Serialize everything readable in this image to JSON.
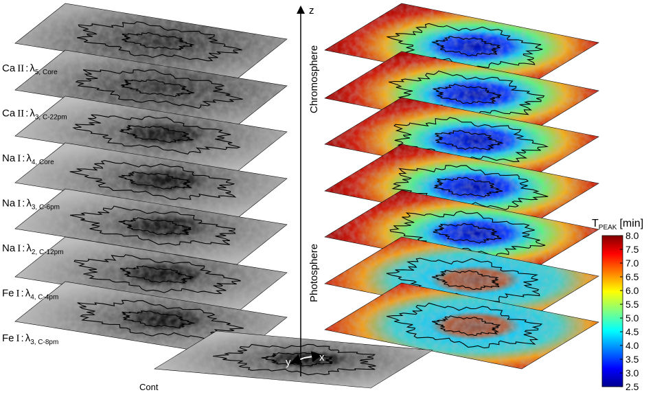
{
  "left_labels": [
    {
      "element": "Ca",
      "ion": "II",
      "separator": ":",
      "symbol": "λ",
      "subscript": "5, Core"
    },
    {
      "element": "Ca",
      "ion": "II",
      "separator": ":",
      "symbol": "λ",
      "subscript": "3, C-22pm"
    },
    {
      "element": "Na",
      "ion": "I",
      "separator": ":",
      "symbol": "λ",
      "subscript": "4, Core"
    },
    {
      "element": "Na",
      "ion": "I",
      "separator": ":",
      "symbol": "λ",
      "subscript": "3, C-6pm"
    },
    {
      "element": "Na",
      "ion": "I",
      "separator": ":",
      "symbol": "λ",
      "subscript": "2, C-12pm"
    },
    {
      "element": "Fe",
      "ion": "I",
      "separator": ":",
      "symbol": "λ",
      "subscript": "4, C-4pm"
    },
    {
      "element": "Fe",
      "ion": "I",
      "separator": ":",
      "symbol": "λ",
      "subscript": "3, C-8pm"
    }
  ],
  "bottom_label": "Cont",
  "axes": {
    "z": "z",
    "x": "x",
    "y": "y"
  },
  "regions": [
    "Chromosphere",
    "Photosphere"
  ],
  "colorbar": {
    "symbol": "T",
    "subscript": "PEAK",
    "unit": "[min]",
    "lim": [
      2.5,
      8.0
    ],
    "ticks": [
      2.5,
      {
        "value": 3,
        "label": "3.0"
      },
      3.5,
      {
        "value": 4,
        "label": "4.0"
      },
      4.5,
      {
        "value": 5,
        "label": "5.0"
      },
      5.5,
      {
        "value": 6,
        "label": "6.0"
      },
      6.5,
      {
        "value": 7,
        "label": "7.0"
      },
      7.5,
      {
        "value": 8,
        "label": "8.0"
      }
    ]
  }
}
